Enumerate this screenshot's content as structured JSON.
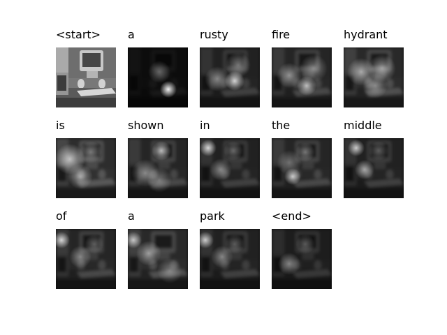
{
  "words": [
    "<start>",
    "a",
    "rusty",
    "fire",
    "hydrant",
    "is",
    "shown",
    "in",
    "the",
    "middle",
    "of",
    "a",
    "park",
    "<end>"
  ]
}
